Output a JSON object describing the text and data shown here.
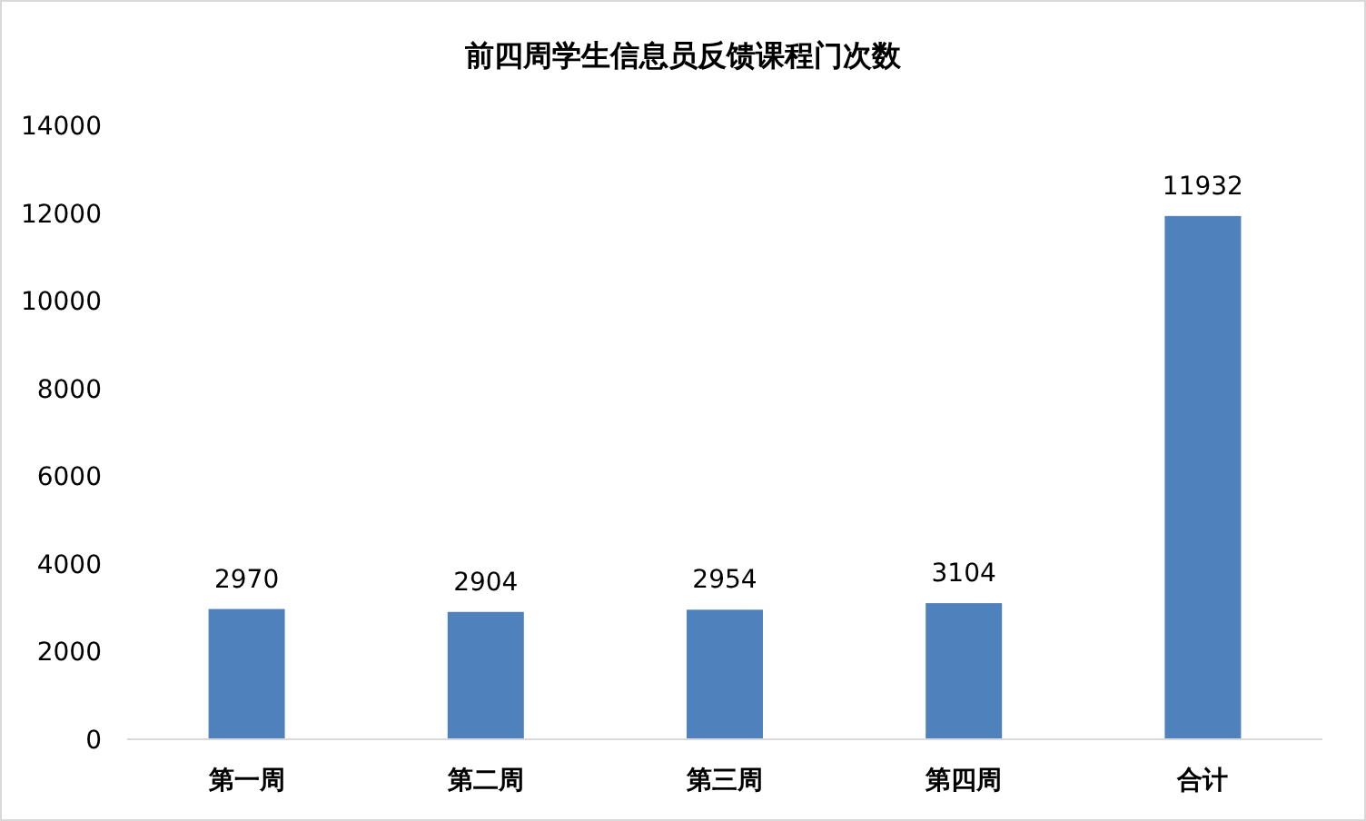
{
  "chart_data": {
    "type": "bar",
    "title": "前四周学生信息员反馈课程门次数",
    "categories": [
      "第一周",
      "第二周",
      "第三周",
      "第四周",
      "合计"
    ],
    "values": [
      2970,
      2904,
      2954,
      3104,
      11932
    ],
    "color": "#4f81bd",
    "ylim": [
      0,
      14000
    ],
    "yticks": [
      0,
      2000,
      4000,
      6000,
      8000,
      10000,
      12000,
      14000
    ],
    "data_labels": true
  }
}
